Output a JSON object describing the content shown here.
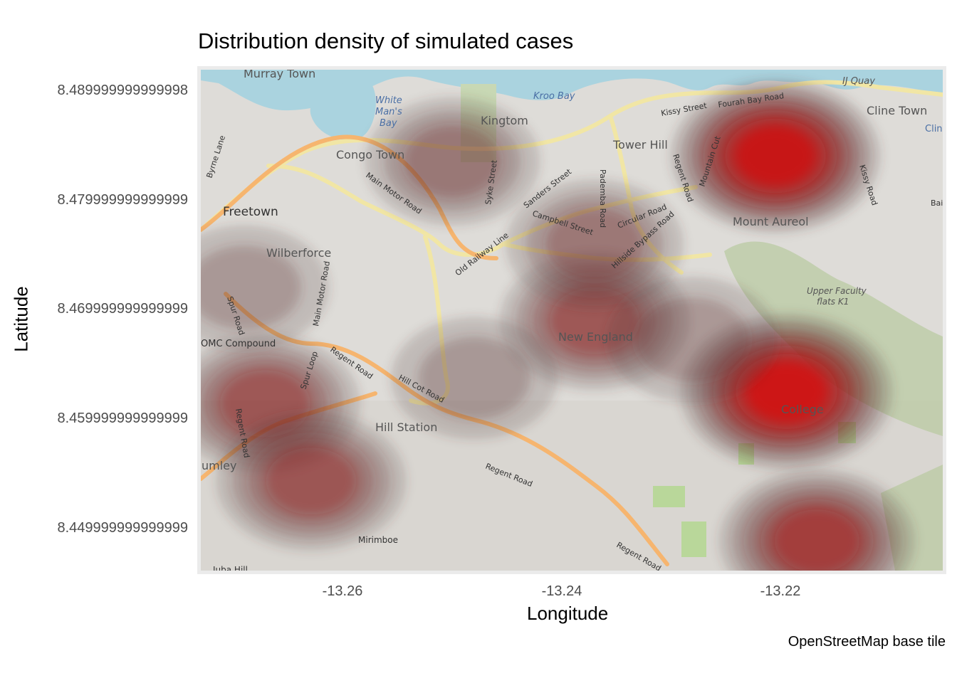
{
  "title": "Distribution density of simulated cases",
  "caption": "OpenStreetMap base tile",
  "x_axis_label": "Longitude",
  "y_axis_label": "Latitude",
  "y_ticks": [
    "8.489999999999998",
    "8.479999999999999",
    "8.469999999999999",
    "8.459999999999999",
    "8.449999999999999"
  ],
  "x_ticks": [
    "-13.26",
    "-13.24",
    "-13.22"
  ],
  "colors": {
    "panel_border": "#ebebeb",
    "density_low": "#4a3b38",
    "density_high": "#ff0000"
  },
  "map_labels": {
    "murray_town": "Murray Town",
    "white_mans_bay": [
      "White",
      "Man's",
      "Bay"
    ],
    "kroo_bay": "Kroo Bay",
    "ij_quay": "IJ Quay",
    "kingtom": "Kingtom",
    "congo_town": "Congo Town",
    "tower_hill": "Tower Hill",
    "cline_town": "Cline Town",
    "clin": "Clin",
    "freetown": "Freetown",
    "wilberforce": "Wilberforce",
    "mount_aureol": "Mount Aureol",
    "new_england": "New England",
    "omc_compound": "OMC Compound",
    "hill_station": "Hill Station",
    "lumley": "umley",
    "mirimboe": "Mirimboe",
    "juba_hill": "Juba Hill",
    "upper_faculty": [
      "Upper Faculty",
      "flats K1"
    ],
    "college": "College"
  },
  "street_labels": {
    "kissy_street": "Kissy Street",
    "fourah_bay_road": "Fourah Bay Road",
    "main_motor_road": "Main Motor Road",
    "sanders_street": "Sanders Street",
    "campbell_street": "Campbell Street",
    "pademba_road": "Pademba Road",
    "circular_road": "Circular Road",
    "regent_road": "Regent Road",
    "old_railway_line": "Old Railway Line",
    "syke_street": "Syke Street",
    "hillside_bypass_road": "Hillside Bypass Road",
    "mountain_cut": "Mountain Cut",
    "hill_cot_road": "Hill Cot Road",
    "spur_road": "Spur Road",
    "spur_loop": "Spur Loop",
    "byrne_lane": "Byrne Lane",
    "kissy_road": "Kissy Road",
    "bai": "Bai",
    "main_motor_road_2": "Main Motor Road",
    "regent_road_2": "Regent Road",
    "regent_road_3": "Regent Road",
    "regent_road_4": "Regent Road",
    "regent_road_5": "Regent Road"
  },
  "chart_data": {
    "type": "density",
    "xlim": [
      -13.2713,
      -13.2029
    ],
    "ylim": [
      8.4463,
      8.4922
    ],
    "x_ticks": [
      -13.26,
      -13.24,
      -13.22
    ],
    "y_ticks": [
      8.49,
      8.48,
      8.47,
      8.46,
      8.45
    ],
    "grid": false,
    "hotspots": [
      {
        "lon": -13.2185,
        "lat": 8.4841,
        "intensity": 0.95
      },
      {
        "lon": -13.2175,
        "lat": 8.4628,
        "intensity": 1.0
      },
      {
        "lon": -13.2147,
        "lat": 8.4493,
        "intensity": 0.72
      },
      {
        "lon": -13.235,
        "lat": 8.4692,
        "intensity": 0.62
      },
      {
        "lon": -13.235,
        "lat": 8.4761,
        "intensity": 0.42
      },
      {
        "lon": -13.2651,
        "lat": 8.4617,
        "intensity": 0.62
      },
      {
        "lon": -13.2609,
        "lat": 8.4547,
        "intensity": 0.62
      },
      {
        "lon": -13.248,
        "lat": 8.4836,
        "intensity": 0.38
      },
      {
        "lon": -13.267,
        "lat": 8.4722,
        "intensity": 0.3
      },
      {
        "lon": -13.2261,
        "lat": 8.4675,
        "intensity": 0.32
      },
      {
        "lon": -13.246,
        "lat": 8.464,
        "intensity": 0.25
      }
    ]
  }
}
